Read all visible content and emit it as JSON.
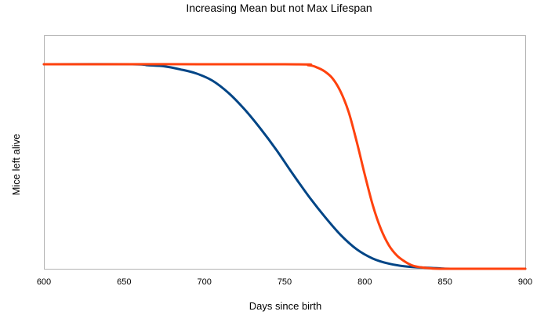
{
  "chart_data": {
    "type": "line",
    "title": "Increasing Mean but not Max Lifespan",
    "xlabel": "Days since birth",
    "ylabel": "Mice left alive",
    "xlim": [
      600,
      900
    ],
    "ylim": [
      0,
      1
    ],
    "xticks": [
      600,
      650,
      700,
      750,
      800,
      850,
      900
    ],
    "xtick_labels": [
      "600",
      "650",
      "700",
      "750",
      "800",
      "850",
      "900"
    ],
    "grid": false,
    "legend": "none",
    "series": [
      {
        "color": "#004586",
        "x": [
          600,
          655,
          665,
          675,
          685,
          695,
          705,
          715,
          725,
          735,
          745,
          755,
          765,
          775,
          785,
          795,
          805,
          815,
          825,
          835,
          845,
          855,
          900
        ],
        "y": [
          1.0,
          1.0,
          0.995,
          0.99,
          0.975,
          0.955,
          0.92,
          0.86,
          0.78,
          0.685,
          0.58,
          0.465,
          0.355,
          0.255,
          0.165,
          0.095,
          0.05,
          0.025,
          0.012,
          0.006,
          0.003,
          0.0,
          0.0
        ]
      },
      {
        "color": "#ff420e",
        "x": [
          600,
          750,
          765,
          770,
          775,
          780,
          785,
          790,
          795,
          800,
          805,
          810,
          815,
          820,
          825,
          830,
          835,
          840,
          850,
          900
        ],
        "y": [
          1.0,
          1.0,
          0.995,
          0.985,
          0.965,
          0.93,
          0.865,
          0.765,
          0.62,
          0.46,
          0.31,
          0.195,
          0.115,
          0.065,
          0.035,
          0.015,
          0.007,
          0.003,
          0.0,
          0.0
        ]
      }
    ]
  }
}
